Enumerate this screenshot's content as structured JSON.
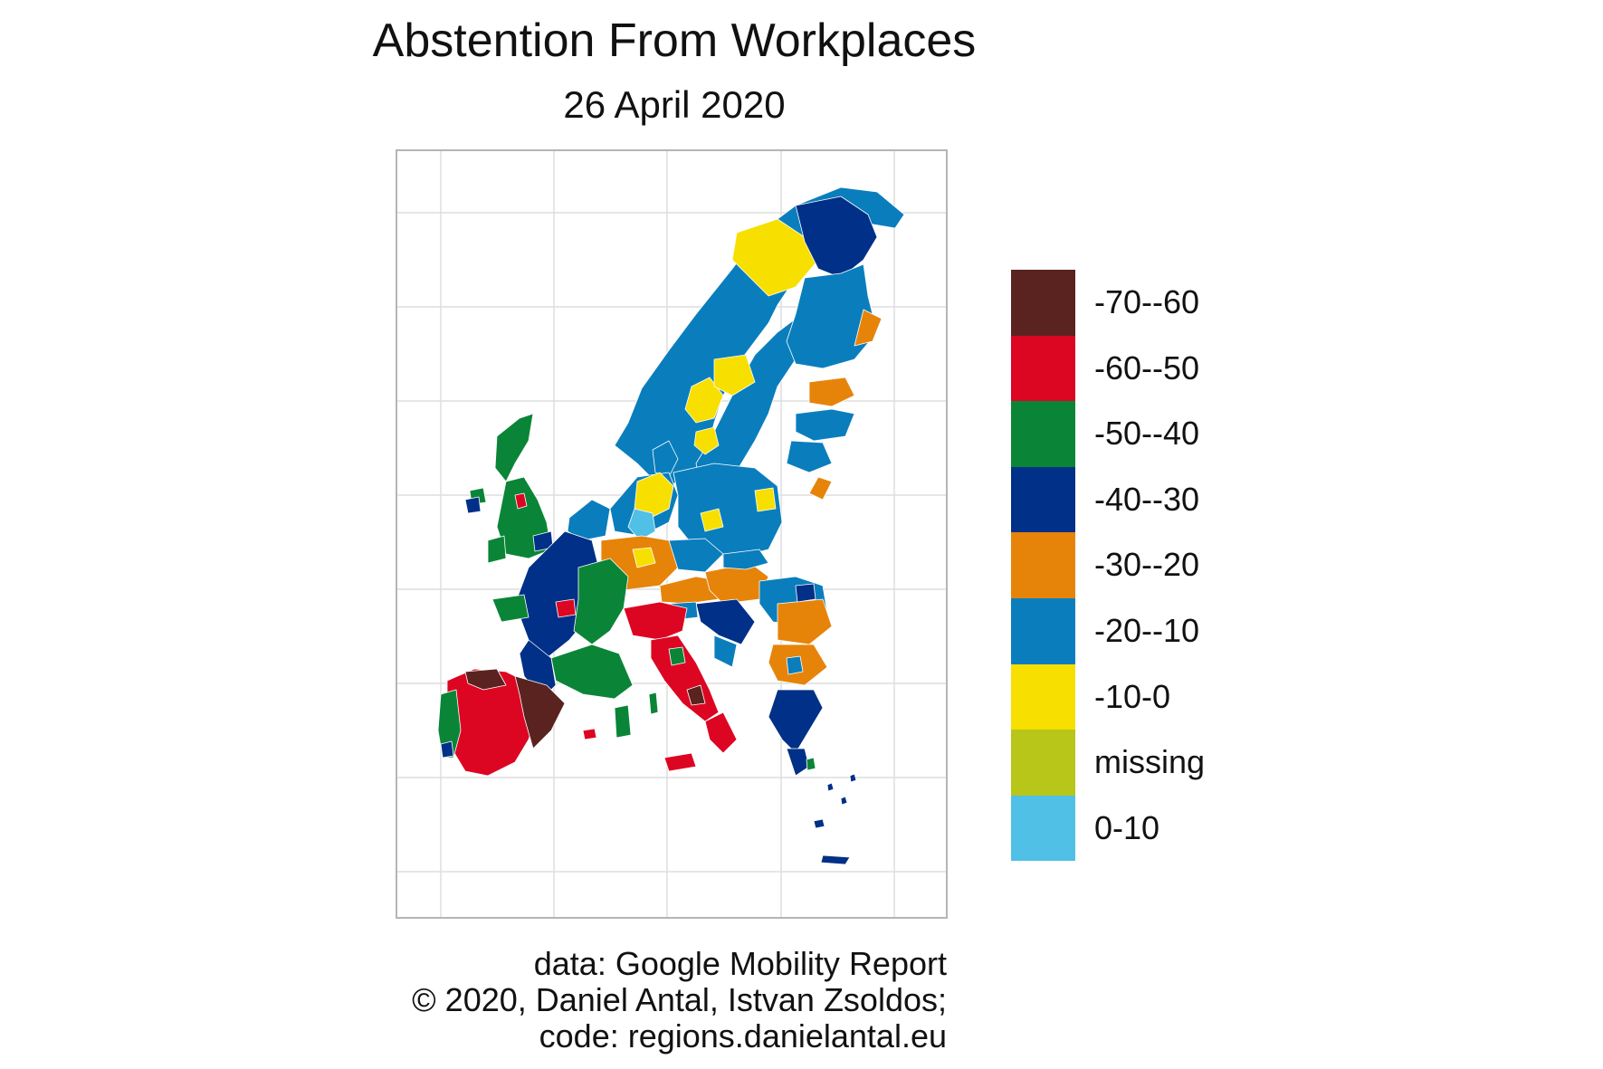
{
  "title": "Abstention From Workplaces",
  "subtitle": "26 April 2020",
  "legend": {
    "items": [
      {
        "label": "-70--60",
        "color": "#5a2320"
      },
      {
        "label": "-60--50",
        "color": "#dc0622"
      },
      {
        "label": "-50--40",
        "color": "#0a8537"
      },
      {
        "label": "-40--30",
        "color": "#003087"
      },
      {
        "label": "-30--20",
        "color": "#e6840a"
      },
      {
        "label": "-20--10",
        "color": "#0a7ebc"
      },
      {
        "label": "-10-0",
        "color": "#f7df00"
      },
      {
        "label": "missing",
        "color": "#b8c519"
      },
      {
        "label": "0-10",
        "color": "#50c0e6"
      }
    ]
  },
  "caption": {
    "line1": "data: Google Mobility Report",
    "line2": "© 2020, Daniel Antal, Istvan Zsoldos;",
    "line3": "code: regions.danielantal.eu"
  }
}
